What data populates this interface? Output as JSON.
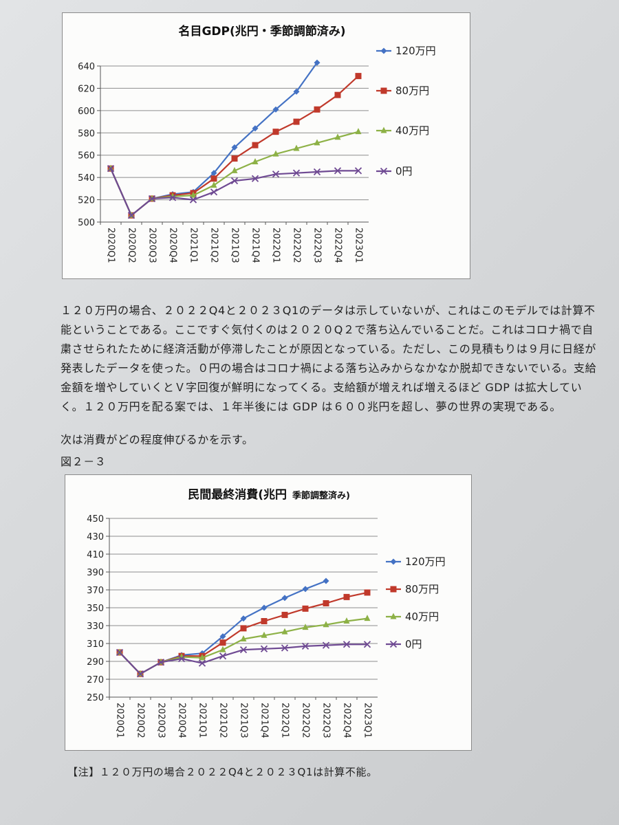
{
  "chart_data": [
    {
      "type": "line",
      "title": "名目GDP(兆円・季節調節済み)",
      "categories": [
        "2020Q1",
        "2020Q2",
        "2020Q3",
        "2020Q4",
        "2021Q1",
        "2021Q2",
        "2021Q3",
        "2021Q4",
        "2022Q1",
        "2022Q2",
        "2022Q3",
        "2022Q4",
        "2023Q1"
      ],
      "ylim": [
        500,
        640
      ],
      "yticks": [
        "500",
        "520",
        "540",
        "560",
        "580",
        "600",
        "620",
        "640"
      ],
      "grid": true,
      "legend_position": "right",
      "series": [
        {
          "name": "120万円",
          "color": "#4472c4",
          "marker": "diamond",
          "values": [
            548,
            506,
            521,
            525,
            527,
            544,
            567,
            584,
            601,
            617,
            643,
            null,
            null
          ]
        },
        {
          "name": "80万円",
          "color": "#c0392b",
          "marker": "square",
          "values": [
            548,
            506,
            521,
            524,
            526,
            539,
            557,
            569,
            581,
            590,
            601,
            614,
            631
          ]
        },
        {
          "name": "40万円",
          "color": "#8db146",
          "marker": "triangle",
          "values": [
            548,
            506,
            521,
            523,
            524,
            533,
            546,
            554,
            561,
            566,
            571,
            576,
            581
          ]
        },
        {
          "name": "0円",
          "color": "#6f4a93",
          "marker": "x",
          "values": [
            548,
            506,
            521,
            522,
            520,
            527,
            537,
            539,
            543,
            544,
            545,
            546,
            546
          ]
        }
      ]
    },
    {
      "type": "line",
      "title": "民間最終消費(兆円",
      "subtitle": "季節調整済み)",
      "categories": [
        "2020Q1",
        "2020Q2",
        "2020Q3",
        "2020Q4",
        "2021Q1",
        "2021Q2",
        "2021Q3",
        "2021Q4",
        "2022Q1",
        "2022Q2",
        "2022Q3",
        "2022Q4",
        "2023Q1"
      ],
      "ylim": [
        250,
        450
      ],
      "yticks": [
        "250",
        "270",
        "290",
        "310",
        "330",
        "350",
        "370",
        "390",
        "410",
        "430",
        "450"
      ],
      "grid": true,
      "legend_position": "right",
      "series": [
        {
          "name": "120万円",
          "color": "#4472c4",
          "marker": "diamond",
          "values": [
            300,
            276,
            289,
            297,
            299,
            318,
            338,
            350,
            361,
            371,
            380,
            null,
            null
          ]
        },
        {
          "name": "80万円",
          "color": "#c0392b",
          "marker": "square",
          "values": [
            300,
            276,
            289,
            296,
            296,
            311,
            327,
            335,
            342,
            349,
            355,
            362,
            367
          ]
        },
        {
          "name": "40万円",
          "color": "#8db146",
          "marker": "triangle",
          "values": [
            300,
            276,
            289,
            295,
            294,
            303,
            315,
            319,
            323,
            328,
            331,
            335,
            338
          ]
        },
        {
          "name": "0円",
          "color": "#6f4a93",
          "marker": "x",
          "values": [
            300,
            276,
            289,
            293,
            288,
            296,
            303,
            304,
            305,
            307,
            308,
            309,
            309
          ]
        }
      ]
    }
  ],
  "text": {
    "paragraph": "１２０万円の場合、２０２２Q4と２０２３Q1のデータは示していないが、これはこのモデルでは計算不能ということである。ここですぐ気付くのは２０２０Q２で落ち込んでいることだ。これはコロナ禍で自粛させられたために経済活動が停滞したことが原因となっている。ただし、この見積もりは９月に日経が発表したデータを使った。０円の場合はコロナ禍による落ち込みからなかなか脱却できないでいる。支給金額を増やしていくとＶ字回復が鮮明になってくる。支給額が増えれば増えるほど GDP は拡大していく。１２０万円を配る案では、１年半後には GDP は６００兆円を超し、夢の世界の実現である。",
    "intro": "次は消費がどの程度伸びるかを示す。",
    "figure_label": "図２－３",
    "note": "【注】１２０万円の場合２０２２Q4と２０２３Q1は計算不能。"
  }
}
